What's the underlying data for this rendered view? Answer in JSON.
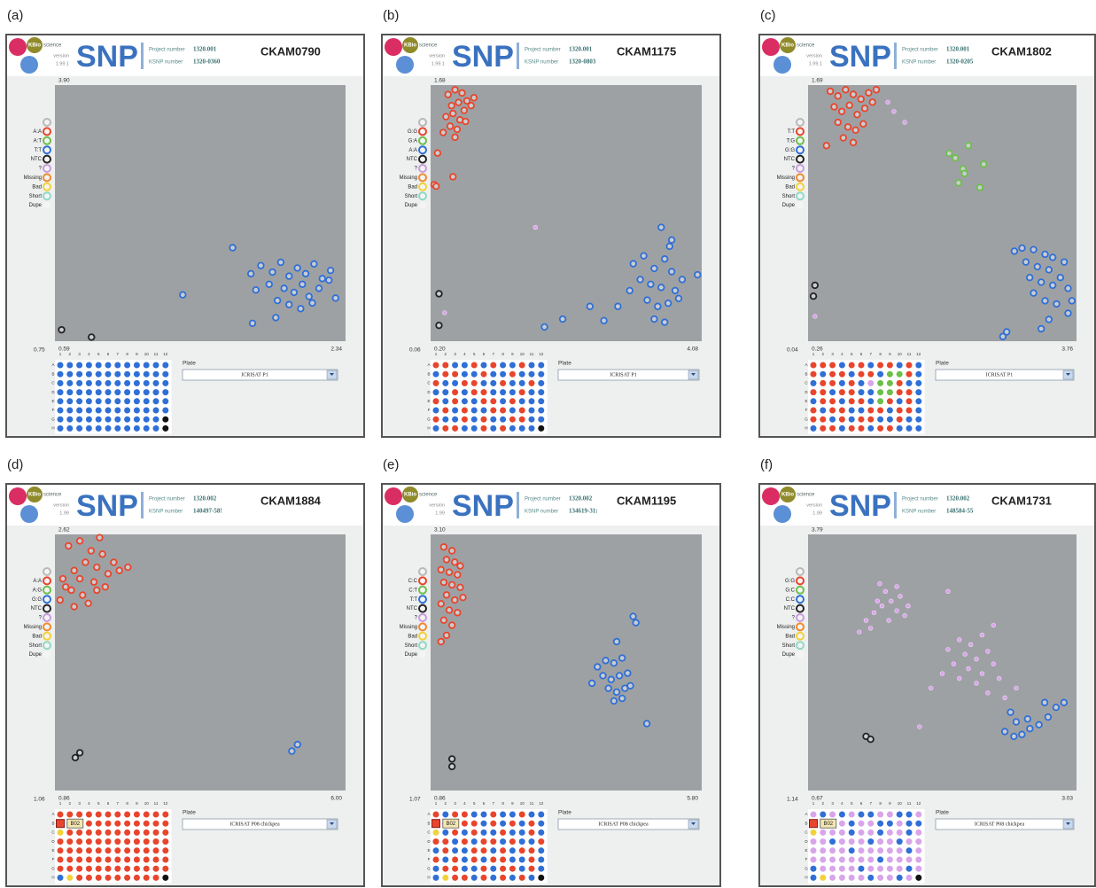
{
  "plate_cols": [
    "1",
    "2",
    "3",
    "4",
    "5",
    "6",
    "7",
    "8",
    "9",
    "10",
    "11",
    "12"
  ],
  "plate_rows": [
    "A",
    "B",
    "C",
    "D",
    "E",
    "F",
    "G",
    "H"
  ],
  "panels": [
    {
      "label": "(a)",
      "brand_a": "KBio",
      "brand_b": "science",
      "version_label": "version",
      "version": "1.99.1",
      "logo": "SNP",
      "project_label": "Project number",
      "project": "1320.001",
      "ksnp_label": "KSNP number",
      "ksnp": "1320-0360",
      "assay": "CKAM0790",
      "xlim": [
        0.59,
        2.34
      ],
      "xticks": [
        0.59,
        2.34
      ],
      "ylim": [
        0.75,
        3.9
      ],
      "yticks": [
        0.75,
        {
          "value": 3.9,
          "label": "3.90"
        }
      ],
      "legend": [
        null,
        "A:A",
        "A:T",
        "T:T",
        "NTC",
        "?",
        "Missing",
        "Bad",
        "Short",
        "Dupe"
      ],
      "plate_label": "Plate",
      "plate": "ICRISAT P1",
      "series": [
        {
          "color": "#2f6fd6",
          "x": [
            1.83,
            1.9,
            1.95,
            2.0,
            2.05,
            2.1,
            2.15,
            2.2,
            1.88,
            1.97,
            2.03,
            2.08,
            2.12,
            2.18,
            2.24,
            1.93,
            2.0,
            2.07,
            1.8,
            1.77,
            2.25,
            2.14,
            1.66,
            1.36,
            1.78,
            1.92,
            2.28
          ],
          "y": [
            1.68,
            1.6,
            1.72,
            1.55,
            1.65,
            1.58,
            1.7,
            1.52,
            1.45,
            1.4,
            1.35,
            1.45,
            1.3,
            1.4,
            1.5,
            1.25,
            1.2,
            1.15,
            1.38,
            1.58,
            1.62,
            1.22,
            1.9,
            1.32,
            0.97,
            1.04,
            1.28
          ]
        },
        {
          "color": "#222222",
          "x": [
            0.63,
            0.81
          ],
          "y": [
            0.89,
            0.8
          ]
        }
      ]
    },
    {
      "label": "(b)",
      "brand_a": "KBio",
      "brand_b": "science",
      "version_label": "version",
      "version": "1.99.1",
      "logo": "SNP",
      "project_label": "Project number",
      "project": "1320.001",
      "ksnp_label": "KSNP number",
      "ksnp": "1320-0803",
      "assay": "CKAM1175",
      "xlim": [
        0.2,
        4.08
      ],
      "xticks": [
        {
          "value": 0.2,
          "label": "0.20"
        },
        4.08
      ],
      "ylim": [
        0.06,
        1.68
      ],
      "yticks": [
        0.06,
        1.68
      ],
      "legend": [
        null,
        "G:G",
        "G:A",
        "A:A",
        "NTC",
        "?",
        "Missing",
        "Bad",
        "Short",
        "Dupe"
      ],
      "plate_label": "Plate",
      "plate": "ICRISAT P1",
      "series": [
        {
          "color": "#e8452c",
          "x": [
            0.45,
            0.55,
            0.65,
            0.72,
            0.5,
            0.6,
            0.68,
            0.78,
            0.42,
            0.52,
            0.62,
            0.7,
            0.48,
            0.58,
            0.38,
            0.55,
            0.3,
            0.25,
            0.28,
            0.52,
            0.82
          ],
          "y": [
            1.62,
            1.65,
            1.63,
            1.58,
            1.55,
            1.57,
            1.52,
            1.55,
            1.48,
            1.5,
            1.46,
            1.45,
            1.42,
            1.4,
            1.38,
            1.35,
            1.25,
            1.05,
            1.04,
            1.1,
            1.6
          ]
        },
        {
          "color": "#2f6fd6",
          "x": [
            3.1,
            3.25,
            3.4,
            3.55,
            3.65,
            3.2,
            3.35,
            3.5,
            3.7,
            3.8,
            3.3,
            3.45,
            3.6,
            3.75,
            3.4,
            3.55,
            3.65,
            3.5,
            3.62,
            4.02,
            3.05,
            2.48,
            2.68,
            2.88,
            1.83,
            2.09
          ],
          "y": [
            0.55,
            0.6,
            0.52,
            0.58,
            0.5,
            0.45,
            0.42,
            0.4,
            0.38,
            0.45,
            0.32,
            0.28,
            0.3,
            0.33,
            0.2,
            0.18,
            0.7,
            0.78,
            0.66,
            0.48,
            0.38,
            0.28,
            0.19,
            0.28,
            0.15,
            0.2
          ]
        },
        {
          "color": "#222222",
          "x": [
            0.32,
            0.32
          ],
          "y": [
            0.36,
            0.16
          ]
        },
        {
          "color": "#d9a5ea",
          "x": [
            1.7,
            0.4
          ],
          "y": [
            0.78,
            0.24
          ]
        }
      ]
    },
    {
      "label": "(c)",
      "brand_a": "KBio",
      "brand_b": "science",
      "version_label": "version",
      "version": "1.99.1",
      "logo": "SNP",
      "project_label": "Project number",
      "project": "1320.001",
      "ksnp_label": "KSNP number",
      "ksnp": "1320-0205",
      "assay": "CKAM1802",
      "xlim": [
        0.26,
        3.76
      ],
      "xticks": [
        0.26,
        3.76
      ],
      "ylim": [
        0.04,
        1.69
      ],
      "yticks": [
        0.04,
        1.69
      ],
      "legend": [
        null,
        "T:T",
        "T:G",
        "G:G",
        "NTC",
        "?",
        "Missing",
        "Bad",
        "Short",
        "Dupe"
      ],
      "plate_label": "Plate",
      "plate": "ICRISAT P1",
      "series": [
        {
          "color": "#e8452c",
          "x": [
            0.55,
            0.65,
            0.75,
            0.85,
            0.95,
            1.05,
            0.6,
            0.7,
            0.8,
            0.9,
            1.0,
            1.1,
            0.65,
            0.78,
            0.88,
            0.98,
            0.72,
            0.85,
            0.5,
            1.15
          ],
          "y": [
            1.65,
            1.62,
            1.66,
            1.63,
            1.6,
            1.64,
            1.55,
            1.52,
            1.56,
            1.5,
            1.54,
            1.58,
            1.45,
            1.42,
            1.4,
            1.44,
            1.35,
            1.32,
            1.3,
            1.66
          ]
        },
        {
          "color": "#d9a5ea",
          "x": [
            1.3,
            1.38,
            1.52,
            0.35
          ],
          "y": [
            1.58,
            1.52,
            1.45,
            0.2
          ]
        },
        {
          "color": "#6cc04a",
          "x": [
            2.1,
            2.18,
            2.35,
            2.28,
            2.3,
            2.55,
            2.22,
            2.5
          ],
          "y": [
            1.25,
            1.22,
            1.3,
            1.15,
            1.12,
            1.18,
            1.06,
            1.03
          ]
        },
        {
          "color": "#2f6fd6",
          "x": [
            2.95,
            3.05,
            3.2,
            3.35,
            3.45,
            3.1,
            3.25,
            3.4,
            3.6,
            3.55,
            3.15,
            3.3,
            3.45,
            3.65,
            3.2,
            3.35,
            3.5,
            3.65,
            3.4,
            3.3,
            2.85,
            2.8,
            3.7
          ],
          "y": [
            0.62,
            0.64,
            0.63,
            0.6,
            0.58,
            0.55,
            0.52,
            0.5,
            0.55,
            0.45,
            0.45,
            0.42,
            0.4,
            0.38,
            0.35,
            0.3,
            0.28,
            0.22,
            0.18,
            0.12,
            0.1,
            0.07,
            0.3
          ]
        },
        {
          "color": "#222222",
          "x": [
            0.35,
            0.33
          ],
          "y": [
            0.4,
            0.33
          ]
        }
      ]
    },
    {
      "label": "(d)",
      "brand_a": "KBio",
      "brand_b": "science",
      "version_label": "version",
      "version": "1.99",
      "logo": "SNP",
      "project_label": "Project number",
      "project": "1320.002",
      "ksnp_label": "KSNP number",
      "ksnp": "140497-58!",
      "assay": "CKAM1884",
      "xlim": [
        0.86,
        6
      ],
      "xticks": [
        0.86,
        {
          "value": 6,
          "label": "6.00"
        }
      ],
      "ylim": [
        1.06,
        2.62
      ],
      "yticks": [
        1.06,
        2.62
      ],
      "legend": [
        null,
        "A:A",
        "A:G",
        "G:G",
        "NTC",
        "?",
        "Missing",
        "Bad",
        "Short",
        "Dupe"
      ],
      "plate_label": "Plate",
      "plate": "ICRISAT P08 chickpea",
      "selected_well": "B02",
      "series": [
        {
          "color": "#e8452c",
          "x": [
            1.1,
            1.3,
            1.5,
            1.7,
            1.4,
            1.6,
            1.2,
            1.0,
            1.3,
            1.55,
            1.8,
            2.0,
            1.15,
            1.35,
            1.6,
            0.95,
            1.2,
            1.45,
            1.9,
            1.75,
            2.15,
            1.05,
            1.65
          ],
          "y": [
            2.55,
            2.58,
            2.52,
            2.5,
            2.45,
            2.42,
            2.4,
            2.35,
            2.35,
            2.33,
            2.38,
            2.4,
            2.28,
            2.25,
            2.28,
            2.22,
            2.18,
            2.2,
            2.45,
            2.3,
            2.42,
            2.3,
            2.6
          ]
        },
        {
          "color": "#222222",
          "x": [
            1.22,
            1.3
          ],
          "y": [
            1.26,
            1.29
          ]
        },
        {
          "color": "#2f6fd6",
          "x": [
            5.05,
            5.15
          ],
          "y": [
            1.3,
            1.34
          ]
        }
      ]
    },
    {
      "label": "(e)",
      "brand_a": "KBio",
      "brand_b": "science",
      "version_label": "version",
      "version": "1.99",
      "logo": "SNP",
      "project_label": "Project number",
      "project": "1320.002",
      "ksnp_label": "KSNP number",
      "ksnp": "134619-31:",
      "assay": "CKAM1195",
      "xlim": [
        0.86,
        5.8
      ],
      "xticks": [
        0.86,
        {
          "value": 5.8,
          "label": "5.80"
        }
      ],
      "ylim": [
        1.07,
        3.1
      ],
      "yticks": [
        1.07,
        {
          "value": 3.1,
          "label": "3.10"
        }
      ],
      "legend": [
        null,
        "C:C",
        "C:T",
        "T:T",
        "NTC",
        "?",
        "Missing",
        "Bad",
        "Short",
        "Dupe"
      ],
      "plate_label": "Plate",
      "plate": "ICRISAT P08 chickpea",
      "selected_well": "B02",
      "series": [
        {
          "color": "#e8452c",
          "x": [
            1.1,
            1.25,
            1.15,
            1.3,
            1.05,
            1.2,
            1.35,
            1.1,
            1.25,
            1.4,
            1.15,
            1.3,
            1.05,
            1.2,
            1.35,
            1.1,
            1.25,
            1.15,
            1.05,
            1.4,
            1.45
          ],
          "y": [
            3.0,
            2.97,
            2.9,
            2.88,
            2.82,
            2.8,
            2.78,
            2.72,
            2.7,
            2.68,
            2.62,
            2.58,
            2.55,
            2.5,
            2.48,
            2.42,
            2.38,
            2.3,
            2.25,
            2.85,
            2.6
          ]
        },
        {
          "color": "#2f6fd6",
          "x": [
            3.9,
            4.05,
            4.2,
            4.35,
            4.0,
            4.15,
            4.3,
            4.45,
            4.1,
            4.25,
            4.4,
            4.2,
            4.35,
            4.25,
            4.6,
            4.55,
            4.8,
            3.8,
            4.5
          ],
          "y": [
            2.05,
            2.1,
            2.08,
            2.12,
            1.98,
            1.95,
            1.98,
            2.0,
            1.88,
            1.85,
            1.88,
            1.78,
            1.8,
            2.25,
            2.4,
            2.45,
            1.6,
            1.92,
            1.9
          ]
        },
        {
          "color": "#222222",
          "x": [
            1.25,
            1.25
          ],
          "y": [
            1.32,
            1.26
          ]
        }
      ]
    },
    {
      "label": "(f)",
      "brand_a": "KBio",
      "brand_b": "science",
      "version_label": "version",
      "version": "1.99",
      "logo": "SNP",
      "project_label": "Project number",
      "project": "1320.002",
      "ksnp_label": "KSNP number",
      "ksnp": "148584-55",
      "assay": "CKAM1731",
      "xlim": [
        0.67,
        3.03
      ],
      "xticks": [
        0.67,
        3.03
      ],
      "ylim": [
        1.14,
        3.79
      ],
      "yticks": [
        1.14,
        3.79
      ],
      "legend": [
        null,
        "G:G",
        "G:C",
        "C:C",
        "NTC",
        "?",
        "Missing",
        "Bad",
        "Short",
        "Dupe"
      ],
      "plate_label": "Plate",
      "plate": "ICRISAT P08 chickpea",
      "selected_well": "B02",
      "series": [
        {
          "color": "#d9a5ea",
          "x": [
            1.18,
            1.25,
            1.32,
            1.4,
            1.48,
            1.35,
            1.28,
            1.45,
            1.52,
            1.22,
            1.38,
            1.12,
            1.45,
            1.3,
            1.55,
            1.9,
            2.0,
            2.1,
            2.2,
            2.05,
            2.15,
            2.25,
            1.95,
            2.08,
            2.2,
            2.3,
            2.0,
            2.15,
            2.35,
            2.25,
            2.4,
            1.85,
            2.3,
            1.9,
            2.5,
            1.75,
            1.65
          ],
          "y": [
            2.9,
            2.98,
            3.05,
            3.1,
            3.15,
            3.2,
            3.1,
            3.0,
            2.95,
            2.82,
            2.9,
            2.78,
            3.25,
            3.28,
            3.05,
            2.6,
            2.7,
            2.65,
            2.75,
            2.55,
            2.5,
            2.58,
            2.45,
            2.4,
            2.35,
            2.45,
            2.3,
            2.25,
            2.3,
            2.15,
            2.1,
            2.35,
            2.85,
            3.2,
            2.2,
            2.2,
            1.8
          ]
        },
        {
          "color": "#2f6fd6",
          "x": [
            2.4,
            2.48,
            2.55,
            2.62,
            2.5,
            2.6,
            2.7,
            2.78,
            2.85,
            2.92,
            2.45,
            2.75
          ],
          "y": [
            1.75,
            1.7,
            1.72,
            1.78,
            1.85,
            1.88,
            1.82,
            1.9,
            2.0,
            2.05,
            1.95,
            2.05
          ]
        },
        {
          "color": "#222222",
          "x": [
            1.18,
            1.22
          ],
          "y": [
            1.7,
            1.67
          ]
        }
      ]
    }
  ]
}
